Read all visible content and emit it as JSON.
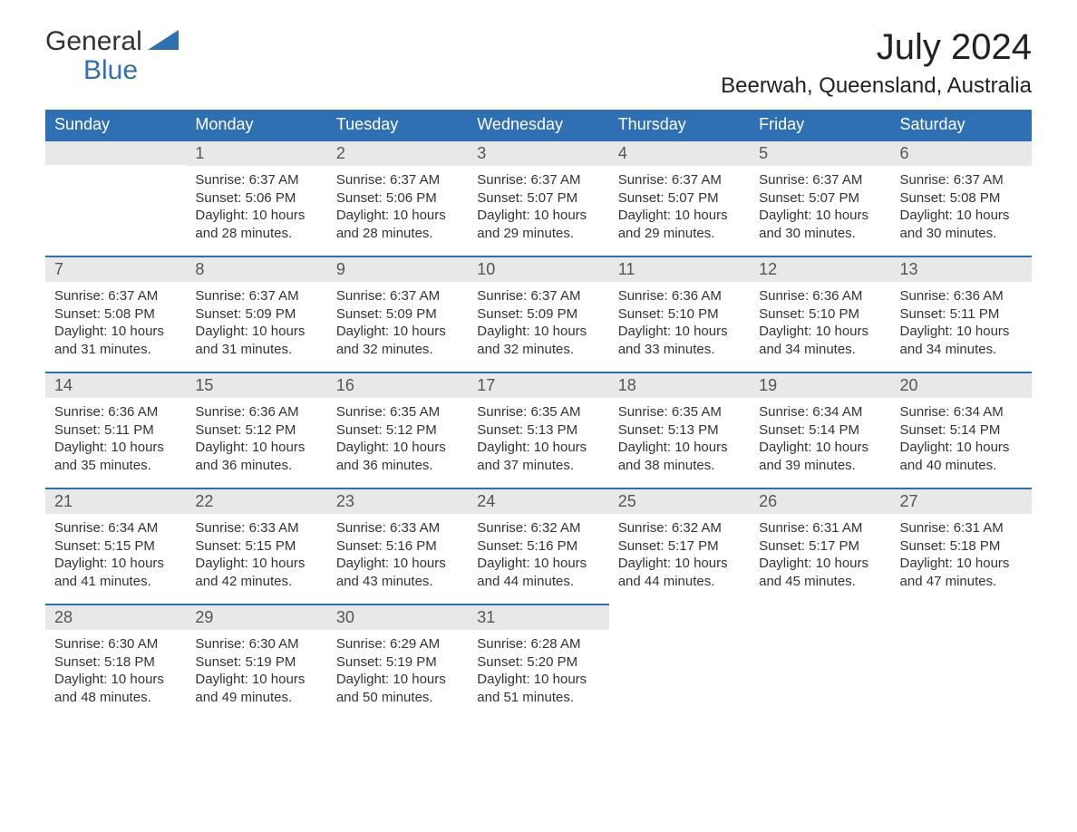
{
  "logo": {
    "text_general": "General",
    "text_blue": "Blue",
    "icon_color": "#2f6fb3"
  },
  "header": {
    "month_title": "July 2024",
    "location": "Beerwah, Queensland, Australia"
  },
  "colors": {
    "header_bg": "#2f6fb3",
    "header_fg": "#ffffff",
    "daynum_bg": "#e8e8e8",
    "daynum_fg": "#555555",
    "body_fg": "#333333",
    "cell_border": "#2f6fb3",
    "page_bg": "#ffffff",
    "logo_blue": "#2f6fb3"
  },
  "typography": {
    "month_title_fontsize": 40,
    "location_fontsize": 24,
    "dayheader_fontsize": 18,
    "daynum_fontsize": 18,
    "body_fontsize": 15,
    "logo_fontsize": 30
  },
  "calendar": {
    "type": "table",
    "columns": [
      "Sunday",
      "Monday",
      "Tuesday",
      "Wednesday",
      "Thursday",
      "Friday",
      "Saturday"
    ],
    "weeks": [
      [
        null,
        {
          "n": "1",
          "sunrise": "Sunrise: 6:37 AM",
          "sunset": "Sunset: 5:06 PM",
          "day1": "Daylight: 10 hours",
          "day2": "and 28 minutes."
        },
        {
          "n": "2",
          "sunrise": "Sunrise: 6:37 AM",
          "sunset": "Sunset: 5:06 PM",
          "day1": "Daylight: 10 hours",
          "day2": "and 28 minutes."
        },
        {
          "n": "3",
          "sunrise": "Sunrise: 6:37 AM",
          "sunset": "Sunset: 5:07 PM",
          "day1": "Daylight: 10 hours",
          "day2": "and 29 minutes."
        },
        {
          "n": "4",
          "sunrise": "Sunrise: 6:37 AM",
          "sunset": "Sunset: 5:07 PM",
          "day1": "Daylight: 10 hours",
          "day2": "and 29 minutes."
        },
        {
          "n": "5",
          "sunrise": "Sunrise: 6:37 AM",
          "sunset": "Sunset: 5:07 PM",
          "day1": "Daylight: 10 hours",
          "day2": "and 30 minutes."
        },
        {
          "n": "6",
          "sunrise": "Sunrise: 6:37 AM",
          "sunset": "Sunset: 5:08 PM",
          "day1": "Daylight: 10 hours",
          "day2": "and 30 minutes."
        }
      ],
      [
        {
          "n": "7",
          "sunrise": "Sunrise: 6:37 AM",
          "sunset": "Sunset: 5:08 PM",
          "day1": "Daylight: 10 hours",
          "day2": "and 31 minutes."
        },
        {
          "n": "8",
          "sunrise": "Sunrise: 6:37 AM",
          "sunset": "Sunset: 5:09 PM",
          "day1": "Daylight: 10 hours",
          "day2": "and 31 minutes."
        },
        {
          "n": "9",
          "sunrise": "Sunrise: 6:37 AM",
          "sunset": "Sunset: 5:09 PM",
          "day1": "Daylight: 10 hours",
          "day2": "and 32 minutes."
        },
        {
          "n": "10",
          "sunrise": "Sunrise: 6:37 AM",
          "sunset": "Sunset: 5:09 PM",
          "day1": "Daylight: 10 hours",
          "day2": "and 32 minutes."
        },
        {
          "n": "11",
          "sunrise": "Sunrise: 6:36 AM",
          "sunset": "Sunset: 5:10 PM",
          "day1": "Daylight: 10 hours",
          "day2": "and 33 minutes."
        },
        {
          "n": "12",
          "sunrise": "Sunrise: 6:36 AM",
          "sunset": "Sunset: 5:10 PM",
          "day1": "Daylight: 10 hours",
          "day2": "and 34 minutes."
        },
        {
          "n": "13",
          "sunrise": "Sunrise: 6:36 AM",
          "sunset": "Sunset: 5:11 PM",
          "day1": "Daylight: 10 hours",
          "day2": "and 34 minutes."
        }
      ],
      [
        {
          "n": "14",
          "sunrise": "Sunrise: 6:36 AM",
          "sunset": "Sunset: 5:11 PM",
          "day1": "Daylight: 10 hours",
          "day2": "and 35 minutes."
        },
        {
          "n": "15",
          "sunrise": "Sunrise: 6:36 AM",
          "sunset": "Sunset: 5:12 PM",
          "day1": "Daylight: 10 hours",
          "day2": "and 36 minutes."
        },
        {
          "n": "16",
          "sunrise": "Sunrise: 6:35 AM",
          "sunset": "Sunset: 5:12 PM",
          "day1": "Daylight: 10 hours",
          "day2": "and 36 minutes."
        },
        {
          "n": "17",
          "sunrise": "Sunrise: 6:35 AM",
          "sunset": "Sunset: 5:13 PM",
          "day1": "Daylight: 10 hours",
          "day2": "and 37 minutes."
        },
        {
          "n": "18",
          "sunrise": "Sunrise: 6:35 AM",
          "sunset": "Sunset: 5:13 PM",
          "day1": "Daylight: 10 hours",
          "day2": "and 38 minutes."
        },
        {
          "n": "19",
          "sunrise": "Sunrise: 6:34 AM",
          "sunset": "Sunset: 5:14 PM",
          "day1": "Daylight: 10 hours",
          "day2": "and 39 minutes."
        },
        {
          "n": "20",
          "sunrise": "Sunrise: 6:34 AM",
          "sunset": "Sunset: 5:14 PM",
          "day1": "Daylight: 10 hours",
          "day2": "and 40 minutes."
        }
      ],
      [
        {
          "n": "21",
          "sunrise": "Sunrise: 6:34 AM",
          "sunset": "Sunset: 5:15 PM",
          "day1": "Daylight: 10 hours",
          "day2": "and 41 minutes."
        },
        {
          "n": "22",
          "sunrise": "Sunrise: 6:33 AM",
          "sunset": "Sunset: 5:15 PM",
          "day1": "Daylight: 10 hours",
          "day2": "and 42 minutes."
        },
        {
          "n": "23",
          "sunrise": "Sunrise: 6:33 AM",
          "sunset": "Sunset: 5:16 PM",
          "day1": "Daylight: 10 hours",
          "day2": "and 43 minutes."
        },
        {
          "n": "24",
          "sunrise": "Sunrise: 6:32 AM",
          "sunset": "Sunset: 5:16 PM",
          "day1": "Daylight: 10 hours",
          "day2": "and 44 minutes."
        },
        {
          "n": "25",
          "sunrise": "Sunrise: 6:32 AM",
          "sunset": "Sunset: 5:17 PM",
          "day1": "Daylight: 10 hours",
          "day2": "and 44 minutes."
        },
        {
          "n": "26",
          "sunrise": "Sunrise: 6:31 AM",
          "sunset": "Sunset: 5:17 PM",
          "day1": "Daylight: 10 hours",
          "day2": "and 45 minutes."
        },
        {
          "n": "27",
          "sunrise": "Sunrise: 6:31 AM",
          "sunset": "Sunset: 5:18 PM",
          "day1": "Daylight: 10 hours",
          "day2": "and 47 minutes."
        }
      ],
      [
        {
          "n": "28",
          "sunrise": "Sunrise: 6:30 AM",
          "sunset": "Sunset: 5:18 PM",
          "day1": "Daylight: 10 hours",
          "day2": "and 48 minutes."
        },
        {
          "n": "29",
          "sunrise": "Sunrise: 6:30 AM",
          "sunset": "Sunset: 5:19 PM",
          "day1": "Daylight: 10 hours",
          "day2": "and 49 minutes."
        },
        {
          "n": "30",
          "sunrise": "Sunrise: 6:29 AM",
          "sunset": "Sunset: 5:19 PM",
          "day1": "Daylight: 10 hours",
          "day2": "and 50 minutes."
        },
        {
          "n": "31",
          "sunrise": "Sunrise: 6:28 AM",
          "sunset": "Sunset: 5:20 PM",
          "day1": "Daylight: 10 hours",
          "day2": "and 51 minutes."
        },
        null,
        null,
        null
      ]
    ]
  }
}
